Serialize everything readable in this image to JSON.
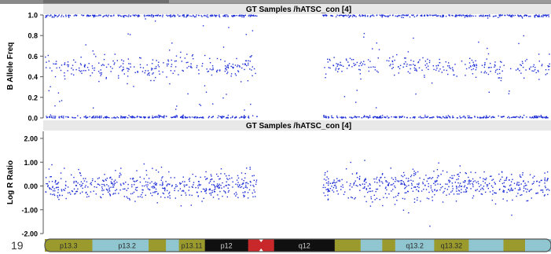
{
  "top_bar_visible": true,
  "chart_data": [
    {
      "type": "scatter",
      "title": "GT Samples / hATSC_con [4]",
      "title_display": "GT Samples /hATSC_con [4]",
      "xlabel": "",
      "ylabel": "B Allele Freq",
      "ylim": [
        0.0,
        1.0
      ],
      "yticks": [
        "0.0",
        "0.2",
        "0.4",
        "0.6",
        "0.8",
        "1.0"
      ],
      "yticks_values": [
        0.0,
        0.2,
        0.4,
        0.6,
        0.8,
        1.0
      ],
      "marker_color": "#1f2fd6",
      "grid": false,
      "series": [
        {
          "name": "",
          "description": "Trimodal clusters at 0.0, ~0.5 and 1.0",
          "clusters": [
            {
              "y_center": 1.0,
              "y_spread": 0.01,
              "x_ranges": [
                [
                  0.0,
                  0.42
                ],
                [
                  0.55,
                  1.0
                ]
              ]
            },
            {
              "y_center": 0.5,
              "y_spread": 0.05,
              "x_ranges": [
                [
                  0.0,
                  0.42
                ],
                [
                  0.55,
                  0.66
                ],
                [
                  0.68,
                  1.0
                ]
              ]
            },
            {
              "y_center": 0.0,
              "y_spread": 0.01,
              "x_ranges": [
                [
                  0.0,
                  0.42
                ],
                [
                  0.55,
                  1.0
                ]
              ]
            }
          ]
        }
      ]
    },
    {
      "type": "scatter",
      "title": "GT Samples / hATSC_con [4]",
      "title_display": "GT Samples /hATSC_con [4]",
      "xlabel": "",
      "ylabel": "Log R Ratio",
      "ylim": [
        -2.0,
        2.0
      ],
      "yticks": [
        "-2.00",
        "-1.00",
        "0.00",
        "1.00",
        "2.00"
      ],
      "yticks_values": [
        -2.0,
        -1.0,
        0.0,
        1.0,
        2.0
      ],
      "marker_color": "#1f2fd6",
      "grid": false,
      "series": [
        {
          "name": "",
          "description": "Dense band centered around 0 with spread about ±0.35",
          "clusters": [
            {
              "y_center": 0.0,
              "y_spread": 0.3,
              "x_ranges": [
                [
                  0.0,
                  0.42
                ],
                [
                  0.55,
                  1.0
                ]
              ]
            }
          ]
        }
      ]
    }
  ],
  "ideogram": {
    "chromosome_label": "19",
    "bands": [
      {
        "label": "p13.3",
        "color": "#9b9b2d",
        "text_dark": true,
        "weight": 11
      },
      {
        "label": "",
        "color": "#8fc6cf",
        "text_dark": true,
        "weight": 3
      },
      {
        "label": "p13.2",
        "color": "#8fc6cf",
        "text_dark": true,
        "weight": 10
      },
      {
        "label": "",
        "color": "#9b9b2d",
        "text_dark": true,
        "weight": 4
      },
      {
        "label": "",
        "color": "#8fc6cf",
        "text_dark": true,
        "weight": 3
      },
      {
        "label": "p13.11",
        "color": "#9b9b2d",
        "text_dark": true,
        "weight": 6
      },
      {
        "label": "p12",
        "color": "#101010",
        "text_dark": false,
        "weight": 10
      },
      {
        "label": "",
        "color": "#c8282a",
        "text_dark": false,
        "weight": 3
      },
      {
        "label": "",
        "color": "#c8282a",
        "text_dark": false,
        "weight": 3
      },
      {
        "label": "q12",
        "color": "#101010",
        "text_dark": false,
        "weight": 14
      },
      {
        "label": "",
        "color": "#9b9b2d",
        "text_dark": true,
        "weight": 6
      },
      {
        "label": "",
        "color": "#8fc6cf",
        "text_dark": true,
        "weight": 5
      },
      {
        "label": "",
        "color": "#9b9b2d",
        "text_dark": true,
        "weight": 3
      },
      {
        "label": "q13.2",
        "color": "#8fc6cf",
        "text_dark": true,
        "weight": 9
      },
      {
        "label": "q13.32",
        "color": "#9b9b2d",
        "text_dark": true,
        "weight": 8
      },
      {
        "label": "",
        "color": "#8fc6cf",
        "text_dark": true,
        "weight": 8
      },
      {
        "label": "",
        "color": "#9b9b2d",
        "text_dark": true,
        "weight": 5
      },
      {
        "label": "",
        "color": "#8fc6cf",
        "text_dark": true,
        "weight": 6
      }
    ]
  }
}
